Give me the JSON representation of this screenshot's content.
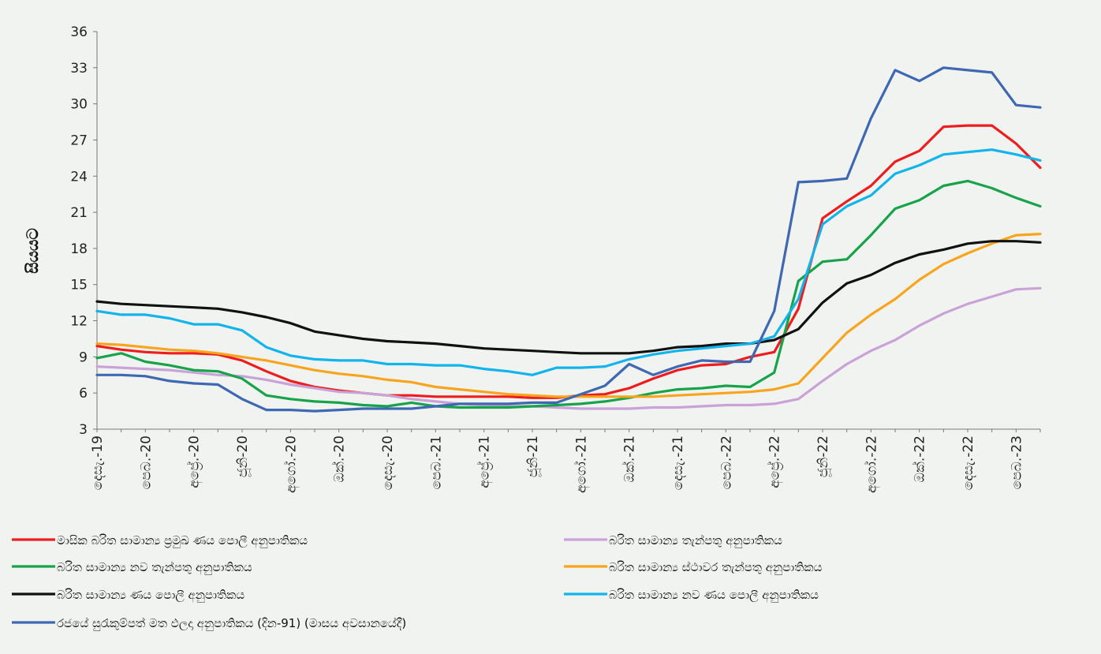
{
  "chart_data": {
    "type": "line",
    "ylabel": "සියයට",
    "ylim": [
      3,
      36
    ],
    "yticks": [
      3,
      6,
      9,
      12,
      15,
      18,
      21,
      24,
      27,
      30,
      33,
      36
    ],
    "grid": false,
    "legend_position": "bottom",
    "x_tick_labels": [
      "දෙසැ.-19",
      "පෙබ.-20",
      "අප්‍රේ.-20",
      "ජූනි-20",
      "අගෝ.-20",
      "ඔක්.-20",
      "දෙසැ.-20",
      "පෙබ.-21",
      "අප්‍රේ.-21",
      "ජූනි-21",
      "අගෝ.-21",
      "ඔක්.-21",
      "දෙසැ.-21",
      "පෙබ.-22",
      "අප්‍රේ.-22",
      "ජූනි-22",
      "අගෝ.-22",
      "ඔක්.-22",
      "දෙසැ.-22",
      "පෙබ.-23"
    ],
    "x_tick_every": 2,
    "series": [
      {
        "name": "මාසික බරිත සාමාන්‍ය ප්‍රමුඛ ණය පොලී අනුපාතිකය",
        "color": "#ee1c1c",
        "values": [
          9.9,
          9.6,
          9.4,
          9.3,
          9.3,
          9.2,
          8.7,
          7.8,
          7.0,
          6.5,
          6.2,
          6.0,
          5.8,
          5.8,
          5.7,
          5.7,
          5.7,
          5.7,
          5.6,
          5.6,
          5.8,
          5.9,
          6.4,
          7.2,
          7.9,
          8.3,
          8.4,
          9.0,
          9.4,
          13.0,
          20.5,
          21.9,
          23.2,
          25.2,
          26.1,
          28.1,
          28.2,
          28.2,
          26.7,
          24.7
        ]
      },
      {
        "name": "බරිත සාමාන්‍ය තැන්පතු අනුපාතිකය",
        "color": "#c9a3d8",
        "values": [
          8.2,
          8.1,
          8.0,
          7.9,
          7.7,
          7.5,
          7.4,
          7.1,
          6.7,
          6.4,
          6.1,
          6.0,
          5.8,
          5.5,
          5.3,
          5.1,
          5.0,
          4.9,
          4.9,
          4.8,
          4.7,
          4.7,
          4.7,
          4.8,
          4.8,
          4.9,
          5.0,
          5.0,
          5.1,
          5.5,
          7.0,
          8.4,
          9.5,
          10.4,
          11.6,
          12.6,
          13.4,
          14.0,
          14.6,
          14.7
        ]
      },
      {
        "name": "බරිත සාමාන්‍ය නව තැන්පතු අනුපාතිකය",
        "color": "#17a34a",
        "values": [
          8.9,
          9.3,
          8.6,
          8.3,
          7.9,
          7.8,
          7.2,
          5.8,
          5.5,
          5.3,
          5.2,
          5.0,
          4.9,
          5.2,
          4.9,
          4.8,
          4.8,
          4.8,
          4.9,
          5.0,
          5.1,
          5.3,
          5.6,
          6.0,
          6.3,
          6.4,
          6.6,
          6.5,
          7.7,
          15.3,
          16.9,
          17.1,
          19.1,
          21.3,
          22.0,
          23.2,
          23.6,
          23.0,
          22.2,
          21.5
        ]
      },
      {
        "name": "බරිත සාමාන්‍ය ස්ථාවර තැන්පතු අනුපාතිකය",
        "color": "#f7a51c",
        "values": [
          10.1,
          10.0,
          9.8,
          9.6,
          9.5,
          9.3,
          9.0,
          8.7,
          8.3,
          7.9,
          7.6,
          7.4,
          7.1,
          6.9,
          6.5,
          6.3,
          6.1,
          5.9,
          5.8,
          5.7,
          5.7,
          5.7,
          5.7,
          5.7,
          5.8,
          5.9,
          6.0,
          6.1,
          6.3,
          6.8,
          8.9,
          11.0,
          12.5,
          13.8,
          15.4,
          16.7,
          17.6,
          18.4,
          19.1,
          19.2
        ]
      },
      {
        "name": "බරිත සාමාන්‍ය ණය පොලී අනුපාතිකය",
        "color": "#111111",
        "values": [
          13.6,
          13.4,
          13.3,
          13.2,
          13.1,
          13.0,
          12.7,
          12.3,
          11.8,
          11.1,
          10.8,
          10.5,
          10.3,
          10.2,
          10.1,
          9.9,
          9.7,
          9.6,
          9.5,
          9.4,
          9.3,
          9.3,
          9.3,
          9.5,
          9.8,
          9.9,
          10.1,
          10.1,
          10.4,
          11.3,
          13.5,
          15.1,
          15.8,
          16.8,
          17.5,
          17.9,
          18.4,
          18.6,
          18.6,
          18.5
        ]
      },
      {
        "name": "බරිත සාමාන්‍ය නව ණය පොලී අනුපාතිකය",
        "color": "#12b4ec",
        "values": [
          12.8,
          12.5,
          12.5,
          12.2,
          11.7,
          11.7,
          11.2,
          9.8,
          9.1,
          8.8,
          8.7,
          8.7,
          8.4,
          8.4,
          8.3,
          8.3,
          8.0,
          7.8,
          7.5,
          8.1,
          8.1,
          8.2,
          8.8,
          9.2,
          9.5,
          9.7,
          9.9,
          10.1,
          10.7,
          13.8,
          20.0,
          21.5,
          22.4,
          24.2,
          24.9,
          25.8,
          26.0,
          26.2,
          25.8,
          25.3
        ]
      },
      {
        "name": "රජයේ සුරැකුම්පත් මත ඵලදා අනුපාතිකය (දින-91) (මාසය අවසානයේදී)",
        "color": "#3f68b2",
        "values": [
          7.5,
          7.5,
          7.4,
          7.0,
          6.8,
          6.7,
          5.5,
          4.6,
          4.6,
          4.5,
          4.6,
          4.7,
          4.7,
          4.7,
          4.9,
          5.1,
          5.1,
          5.1,
          5.2,
          5.2,
          5.9,
          6.6,
          8.4,
          7.5,
          8.2,
          8.7,
          8.6,
          8.6,
          12.8,
          23.5,
          23.6,
          23.8,
          28.8,
          32.8,
          31.9,
          33.0,
          32.8,
          32.6,
          29.9,
          29.7
        ]
      }
    ]
  }
}
